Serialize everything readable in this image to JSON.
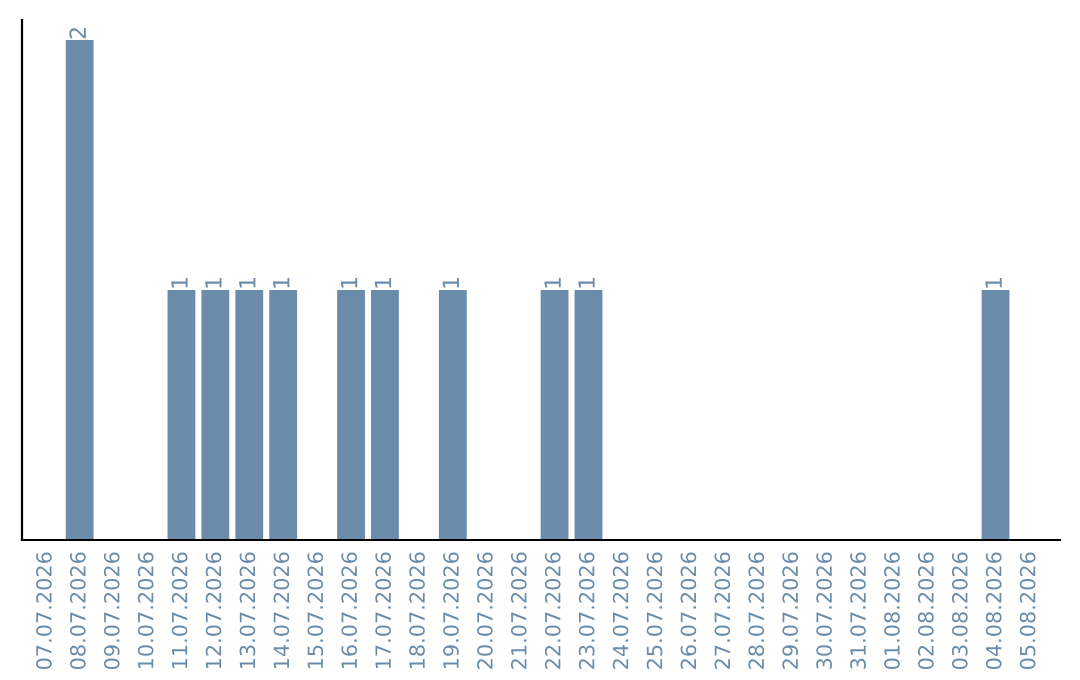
{
  "chart_data": {
    "type": "bar",
    "categories": [
      "07.07.2026",
      "08.07.2026",
      "09.07.2026",
      "10.07.2026",
      "11.07.2026",
      "12.07.2026",
      "13.07.2026",
      "14.07.2026",
      "15.07.2026",
      "16.07.2026",
      "17.07.2026",
      "18.07.2026",
      "19.07.2026",
      "20.07.2026",
      "21.07.2026",
      "22.07.2026",
      "23.07.2026",
      "24.07.2026",
      "25.07.2026",
      "26.07.2026",
      "27.07.2026",
      "28.07.2026",
      "29.07.2026",
      "30.07.2026",
      "31.07.2026",
      "01.08.2026",
      "02.08.2026",
      "03.08.2026",
      "04.08.2026",
      "05.08.2026"
    ],
    "values": [
      0,
      2,
      0,
      0,
      1,
      1,
      1,
      1,
      0,
      1,
      1,
      0,
      1,
      0,
      0,
      1,
      1,
      0,
      0,
      0,
      0,
      0,
      0,
      0,
      0,
      0,
      0,
      0,
      1,
      0
    ],
    "value_labels": [
      null,
      "2",
      null,
      null,
      "1",
      "1",
      "1",
      "1",
      null,
      "1",
      "1",
      null,
      "1",
      null,
      null,
      "1",
      "1",
      null,
      null,
      null,
      null,
      null,
      null,
      null,
      null,
      null,
      null,
      null,
      "1",
      null
    ],
    "color": "#6a8caa",
    "tick_labels": "x",
    "grid": false,
    "legend": false
  }
}
